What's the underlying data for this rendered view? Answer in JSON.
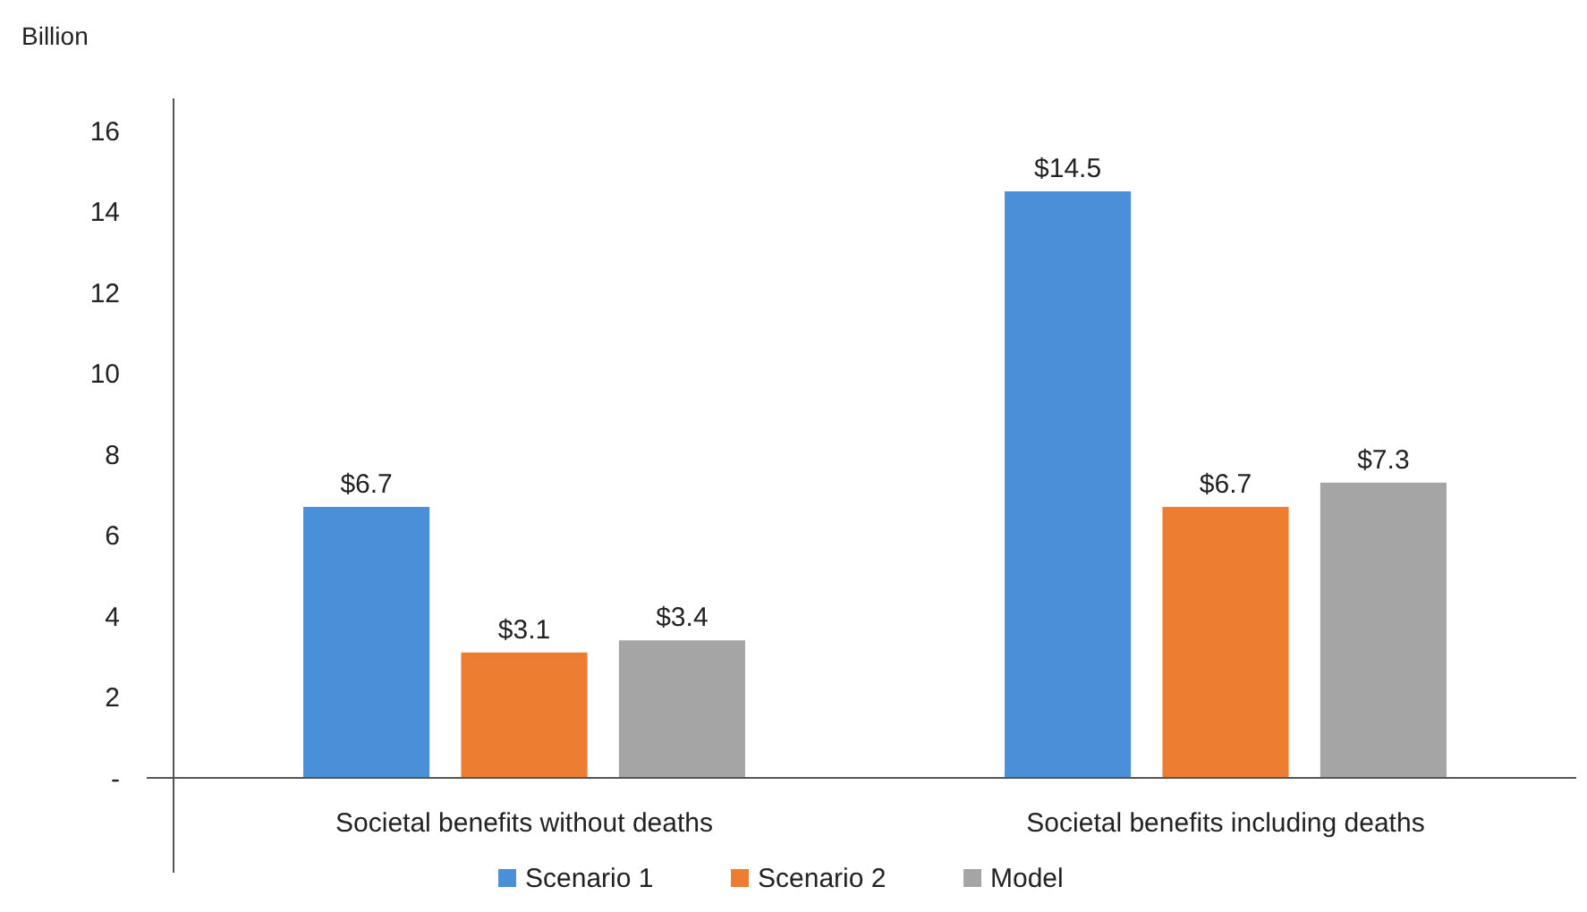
{
  "chart_data": {
    "type": "bar",
    "ylabel": "Billion",
    "categories": [
      "Societal benefits without deaths",
      "Societal benefits including deaths"
    ],
    "series": [
      {
        "name": "Scenario 1",
        "color": "#4a90d9",
        "values": [
          6.7,
          14.5
        ],
        "value_labels": [
          "$6.7",
          "$14.5"
        ]
      },
      {
        "name": "Scenario 2",
        "color": "#ed7d31",
        "values": [
          3.1,
          6.7
        ],
        "value_labels": [
          "$3.1",
          "$6.7"
        ]
      },
      {
        "name": "Model",
        "color": "#a5a5a5",
        "values": [
          3.4,
          7.3
        ],
        "value_labels": [
          "$3.4",
          "$7.3"
        ]
      }
    ],
    "ylim": [
      0,
      16.8
    ],
    "yticks": [
      {
        "value": 0,
        "label": "-"
      },
      2,
      4,
      6,
      8,
      10,
      12,
      14,
      16
    ],
    "grid": false,
    "legend": "bottom"
  }
}
